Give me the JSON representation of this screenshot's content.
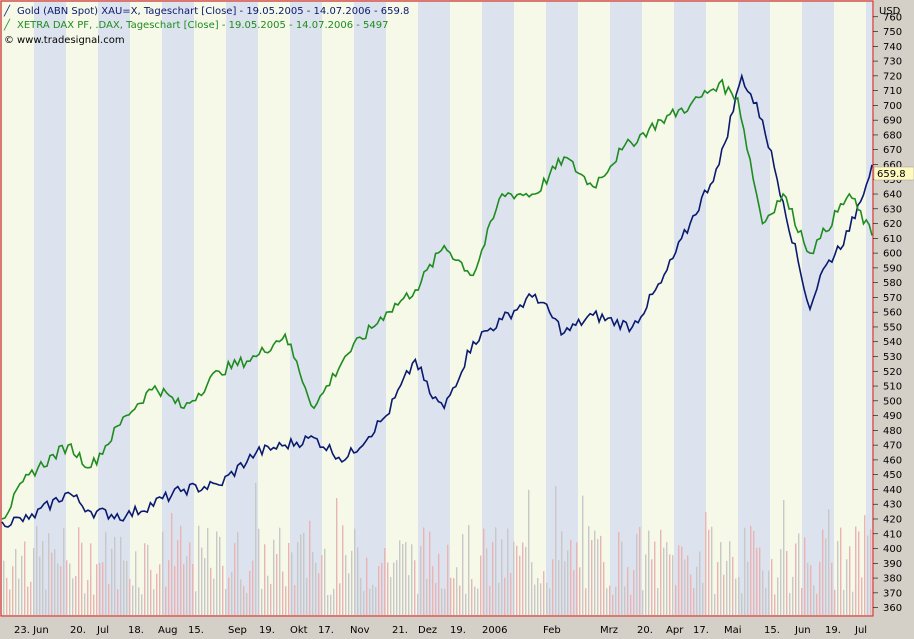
{
  "colors": {
    "gold_series": "#0a1a6e",
    "dax_series": "#1e8c1e",
    "frame": "#e02020",
    "band_blue": "#dde3ee",
    "band_light": "#f6f8e8",
    "volume_pink": "#e8b4b4",
    "volume_grey": "#c8c8c8"
  },
  "legend": {
    "gold": "Gold (ABN Spot) XAU=X, Tageschart [Close] - 19.05.2005 - 14.07.2006 - 659.8",
    "dax": "XETRA DAX PF, .DAX, Tageschart [Close] - 19.05.2005 - 14.07.2006 - 5497",
    "source": "www.tradesignal.com",
    "icon": "line-chart-icon"
  },
  "chart_data": {
    "type": "line",
    "title": "",
    "xlabel": "",
    "ylabel": "USD",
    "ylim": [
      355,
      770
    ],
    "grid": "vertical alternating bands",
    "legend_position": "top-left",
    "last_value_label": "659.8",
    "y_ticks": [
      "360",
      "370",
      "380",
      "390",
      "400",
      "410",
      "420",
      "430",
      "440",
      "450",
      "460",
      "470",
      "480",
      "490",
      "500",
      "510",
      "520",
      "530",
      "540",
      "550",
      "560",
      "570",
      "580",
      "590",
      "600",
      "610",
      "620",
      "630",
      "640",
      "650",
      "660",
      "670",
      "680",
      "690",
      "700",
      "710",
      "720",
      "730",
      "740",
      "750",
      "760"
    ],
    "x_ticks": [
      "23. Jun",
      "20.",
      "Jul",
      "18.",
      "Aug",
      "15.",
      "Sep",
      "19.",
      "Okt",
      "17.",
      "Nov",
      "21.",
      "Dez",
      "19.",
      "2006",
      "Feb",
      "Mrz",
      "20.",
      "Apr",
      "17.",
      "Mai",
      "15.",
      "Jun",
      "19.",
      "Jul"
    ],
    "series": [
      {
        "name": "Gold (ABN Spot) XAU=X",
        "x": [
          "2005-05-19",
          "2005-06-01",
          "2005-06-20",
          "2005-07-01",
          "2005-07-18",
          "2005-08-15",
          "2005-09-01",
          "2005-09-19",
          "2005-10-03",
          "2005-10-17",
          "2005-11-01",
          "2005-11-21",
          "2005-12-05",
          "2005-12-12",
          "2005-12-19",
          "2006-01-02",
          "2006-01-16",
          "2006-02-01",
          "2006-02-15",
          "2006-03-01",
          "2006-03-20",
          "2006-04-03",
          "2006-04-17",
          "2006-05-01",
          "2006-05-12",
          "2006-05-22",
          "2006-06-01",
          "2006-06-14",
          "2006-06-19",
          "2006-07-03",
          "2006-07-14"
        ],
        "values": [
          418,
          420,
          438,
          425,
          422,
          440,
          443,
          465,
          470,
          475,
          460,
          490,
          528,
          505,
          495,
          540,
          555,
          572,
          546,
          558,
          550,
          580,
          620,
          660,
          720,
          690,
          635,
          562,
          585,
          615,
          659.8
        ]
      },
      {
        "name": "XETRA DAX PF, .DAX",
        "x": [
          "2005-05-19",
          "2005-06-01",
          "2005-06-20",
          "2005-07-01",
          "2005-07-18",
          "2005-08-01",
          "2005-08-15",
          "2005-09-01",
          "2005-09-19",
          "2005-10-03",
          "2005-10-17",
          "2005-11-01",
          "2005-11-21",
          "2005-12-05",
          "2005-12-19",
          "2006-01-02",
          "2006-01-16",
          "2006-02-01",
          "2006-02-15",
          "2006-03-01",
          "2006-03-15",
          "2006-04-03",
          "2006-04-17",
          "2006-05-01",
          "2006-05-10",
          "2006-05-22",
          "2006-06-01",
          "2006-06-14",
          "2006-06-19",
          "2006-07-03",
          "2006-07-14"
        ],
        "values": [
          420,
          450,
          470,
          455,
          490,
          510,
          495,
          520,
          530,
          545,
          495,
          530,
          560,
          575,
          605,
          585,
          640,
          640,
          665,
          645,
          670,
          690,
          700,
          715,
          705,
          620,
          640,
          600,
          610,
          640,
          612
        ]
      }
    ]
  }
}
